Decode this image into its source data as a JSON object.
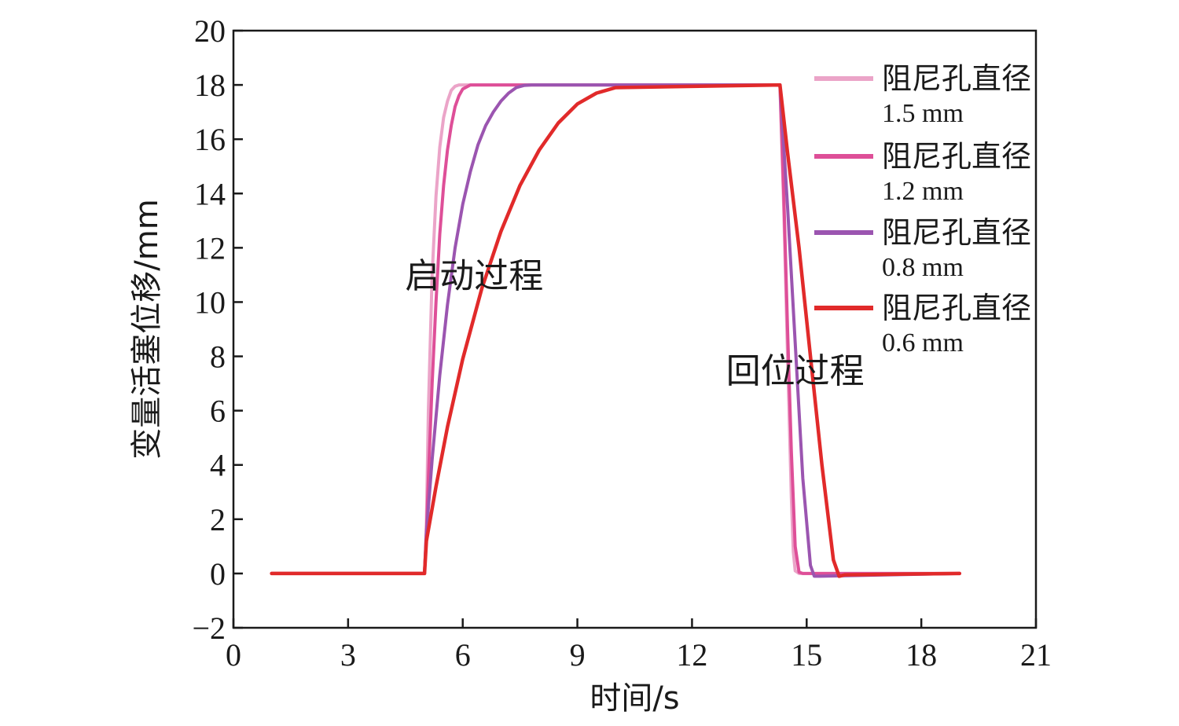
{
  "chart_data": {
    "type": "line",
    "xlabel": "时间/s",
    "ylabel": "变量活塞位移/mm",
    "xlim": [
      0,
      21
    ],
    "ylim": [
      -2,
      20
    ],
    "xticks": [
      0,
      3,
      6,
      9,
      12,
      15,
      18,
      21
    ],
    "yticks": [
      -2,
      0,
      2,
      4,
      6,
      8,
      10,
      12,
      14,
      16,
      18,
      20
    ],
    "xtick_labels": [
      "0",
      "3",
      "6",
      "9",
      "12",
      "15",
      "18",
      "21"
    ],
    "ytick_labels": [
      "−2",
      "0",
      "2",
      "4",
      "6",
      "8",
      "10",
      "12",
      "14",
      "16",
      "18",
      "20"
    ],
    "grid": false,
    "legend_position": "top-right",
    "annotations": [
      {
        "text": "启动过程",
        "x": 6.3,
        "y": 11
      },
      {
        "text": "回位过程",
        "x": 14.7,
        "y": 7.5
      }
    ],
    "series": [
      {
        "name": "阻尼孔直径",
        "value": "1.5 mm",
        "color": "#eba4c8",
        "x": [
          1,
          5.0,
          5.05,
          5.1,
          5.2,
          5.3,
          5.4,
          5.5,
          5.6,
          5.7,
          5.8,
          5.9,
          6.0,
          14.3,
          14.4,
          14.5,
          14.6,
          14.65,
          14.7,
          14.8,
          19
        ],
        "y": [
          0,
          0,
          1.8,
          6.0,
          11.0,
          13.9,
          15.7,
          16.8,
          17.4,
          17.8,
          17.95,
          18,
          18,
          18,
          13.5,
          8.0,
          2.8,
          0.8,
          0.1,
          0,
          0
        ]
      },
      {
        "name": "阻尼孔直径",
        "value": "1.2 mm",
        "color": "#de4f98",
        "x": [
          1,
          5.0,
          5.05,
          5.1,
          5.2,
          5.3,
          5.4,
          5.5,
          5.6,
          5.7,
          5.8,
          5.9,
          6.0,
          6.2,
          14.3,
          14.4,
          14.5,
          14.6,
          14.7,
          14.8,
          14.9,
          19
        ],
        "y": [
          0,
          0,
          1.5,
          3.5,
          7.0,
          10.0,
          12.5,
          14.3,
          15.6,
          16.5,
          17.2,
          17.6,
          17.85,
          18,
          18,
          14.0,
          9.0,
          4.5,
          1.0,
          0.05,
          0,
          0
        ]
      },
      {
        "name": "阻尼孔直径",
        "value": "0.8 mm",
        "color": "#9b55b0",
        "x": [
          1,
          5.0,
          5.05,
          5.2,
          5.4,
          5.6,
          5.8,
          6.0,
          6.2,
          6.4,
          6.6,
          6.8,
          7.0,
          7.2,
          7.4,
          7.6,
          7.8,
          14.3,
          14.5,
          14.7,
          14.9,
          15.1,
          15.2,
          15.35,
          19
        ],
        "y": [
          0,
          0,
          1.5,
          4.2,
          7.3,
          9.9,
          12.0,
          13.6,
          14.8,
          15.8,
          16.5,
          17.0,
          17.4,
          17.7,
          17.9,
          17.98,
          18,
          18,
          13.5,
          8.5,
          3.5,
          0.3,
          -0.1,
          -0.1,
          0
        ]
      },
      {
        "name": "阻尼孔直径",
        "value": "0.6 mm",
        "color": "#e12a2a",
        "x": [
          1,
          5.0,
          5.05,
          5.3,
          5.6,
          6.0,
          6.5,
          7.0,
          7.5,
          8.0,
          8.5,
          9.0,
          9.5,
          10.0,
          14.3,
          14.5,
          14.8,
          15.1,
          15.4,
          15.7,
          15.85,
          16.0,
          19
        ],
        "y": [
          0,
          0,
          1.2,
          3.2,
          5.4,
          7.9,
          10.5,
          12.6,
          14.3,
          15.6,
          16.6,
          17.3,
          17.7,
          17.9,
          18,
          15.5,
          12.0,
          8.0,
          4.0,
          0.5,
          -0.1,
          -0.05,
          0
        ]
      }
    ]
  }
}
